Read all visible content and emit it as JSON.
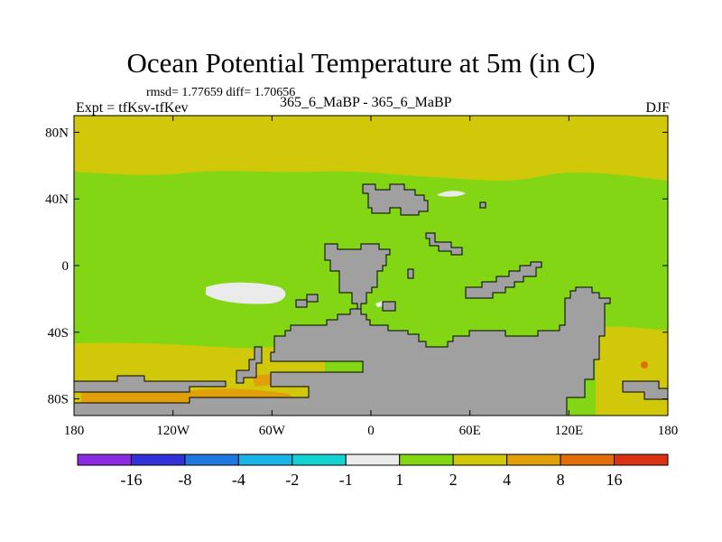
{
  "header": {
    "title": "Ocean Potential Temperature at 5m (in C)",
    "stats": "rmsd= 1.77659  diff= 1.70656",
    "experiment": "Expt = tfKsv-tfKev",
    "case": "365_6_MaBP - 365_6_MaBP",
    "season": "DJF"
  },
  "chart_data": {
    "type": "heatmap",
    "title": "Ocean Potential Temperature at 5m (in C)",
    "xlabel": "",
    "ylabel": "",
    "x_ticks": [
      "180",
      "120W",
      "60W",
      "0",
      "60E",
      "120E",
      "180"
    ],
    "x_tick_values": [
      -180,
      -120,
      -60,
      0,
      60,
      120,
      180
    ],
    "y_ticks": [
      "80N",
      "40N",
      "0",
      "40S",
      "80S"
    ],
    "y_tick_values": [
      80,
      40,
      0,
      -40,
      -80
    ],
    "xlim": [
      -180,
      180
    ],
    "ylim": [
      -90,
      90
    ],
    "colorbar": {
      "colors": [
        "#8a2be2",
        "#3232d8",
        "#1f78e0",
        "#19b4e6",
        "#14d2d2",
        "#ebebeb",
        "#82d614",
        "#d2c80a",
        "#e1a00a",
        "#e16e0a",
        "#dc3214"
      ],
      "labels": [
        "-16",
        "-8",
        "-4",
        "-2",
        "-1",
        "1",
        "2",
        "4",
        "8",
        "16"
      ]
    },
    "regions": {
      "high_latitudes_range": "2 to 4",
      "mid_low_latitudes_range": "1 to 2",
      "southern_high_latitude_patches": "4 to 8",
      "near_zero_patches": "-1 to 1",
      "land_mask_color": "#a0a0a0"
    }
  }
}
